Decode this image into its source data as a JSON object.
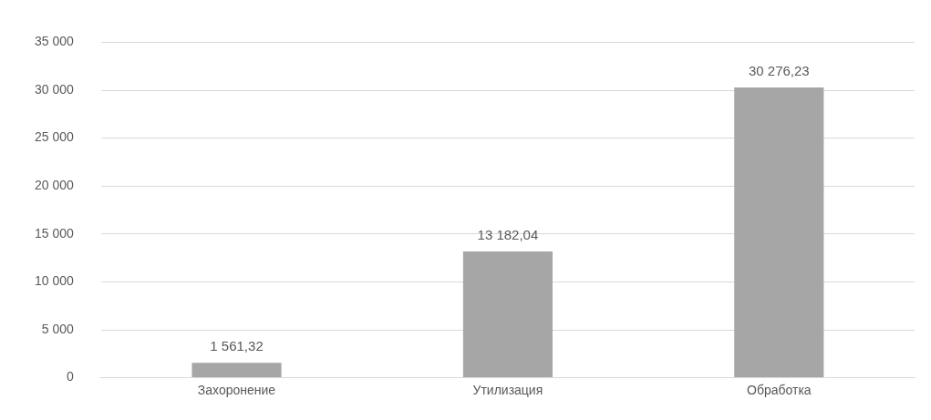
{
  "chart_data": {
    "type": "bar",
    "categories": [
      "Захоронение",
      "Утилизация",
      "Обработка"
    ],
    "values": [
      1561.32,
      13182.04,
      30276.23
    ],
    "value_labels": [
      "1 561,32",
      "13 182,04",
      "30 276,23"
    ],
    "color": "#a6a6a6",
    "ylim": [
      0,
      35000
    ],
    "yticks": [
      {
        "value": 0,
        "label": "0"
      },
      {
        "value": 5000,
        "label": "5 000"
      },
      {
        "value": 10000,
        "label": "10 000"
      },
      {
        "value": 15000,
        "label": "15 000"
      },
      {
        "value": 20000,
        "label": "20 000"
      },
      {
        "value": 25000,
        "label": "25 000"
      },
      {
        "value": 30000,
        "label": "30 000"
      },
      {
        "value": 35000,
        "label": "35 000"
      }
    ],
    "grid": "y",
    "legend": false
  }
}
